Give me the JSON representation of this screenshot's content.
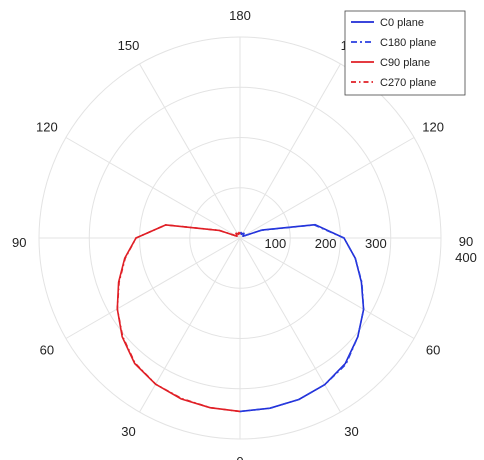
{
  "chart_data": {
    "type": "polar-line",
    "title": "",
    "radial_range": [
      0,
      400
    ],
    "radial_ticks": [
      100,
      200,
      300,
      400
    ],
    "radial_tick_labels": [
      "100",
      "200",
      "300",
      "400"
    ],
    "angular_ticks_deg": [
      0,
      30,
      60,
      90,
      120,
      150,
      180,
      210,
      240,
      270,
      300,
      330
    ],
    "angular_tick_labels": [
      "0",
      "30",
      "60",
      "90",
      "120",
      "150",
      "180",
      "150",
      "120",
      "90",
      "60",
      "30"
    ],
    "zero_direction": "bottom",
    "grid": true,
    "legend_position": "top-right",
    "series": [
      {
        "name": "C0 plane",
        "color": "#1f2bd6",
        "dash": "solid",
        "theta": [
          0,
          10,
          20,
          30,
          40,
          50,
          60,
          70,
          80,
          90,
          100,
          110,
          120,
          130,
          140,
          150,
          160,
          170,
          180
        ],
        "r": [
          345,
          344,
          342,
          337,
          326,
          306,
          284,
          257,
          233,
          207,
          152,
          46,
          7,
          8,
          12,
          10,
          8,
          11,
          8
        ]
      },
      {
        "name": "C180 plane",
        "color": "#2a3fe0",
        "dash": "6,3,2,3",
        "theta": [
          0,
          10,
          20,
          30,
          40,
          50,
          60,
          70,
          80,
          90,
          100,
          110,
          120,
          130,
          140,
          150,
          160,
          170,
          180
        ],
        "r": [
          345,
          344,
          342,
          337,
          328,
          306,
          284,
          258,
          233,
          207,
          150,
          45,
          7,
          8,
          12,
          10,
          8,
          11,
          8
        ]
      },
      {
        "name": "C90 plane",
        "color": "#e01f26",
        "dash": "solid",
        "theta": [
          0,
          10,
          20,
          30,
          40,
          50,
          60,
          70,
          80,
          90,
          100,
          110,
          120,
          130,
          140,
          150,
          160,
          170,
          180
        ],
        "r": [
          345,
          343,
          341,
          336,
          326,
          306,
          282,
          257,
          233,
          207,
          150,
          44,
          7,
          8,
          12,
          10,
          8,
          11,
          8
        ]
      },
      {
        "name": "C270 plane",
        "color": "#e01f26",
        "dash": "5,3,1.5,3",
        "theta": [
          0,
          10,
          20,
          30,
          40,
          50,
          60,
          70,
          80,
          90,
          100,
          110,
          120,
          130,
          140,
          150,
          160,
          170,
          180
        ],
        "r": [
          345,
          343,
          340,
          336,
          325,
          305,
          282,
          256,
          232,
          207,
          150,
          44,
          7,
          8,
          12,
          10,
          8,
          11,
          8
        ]
      }
    ]
  }
}
